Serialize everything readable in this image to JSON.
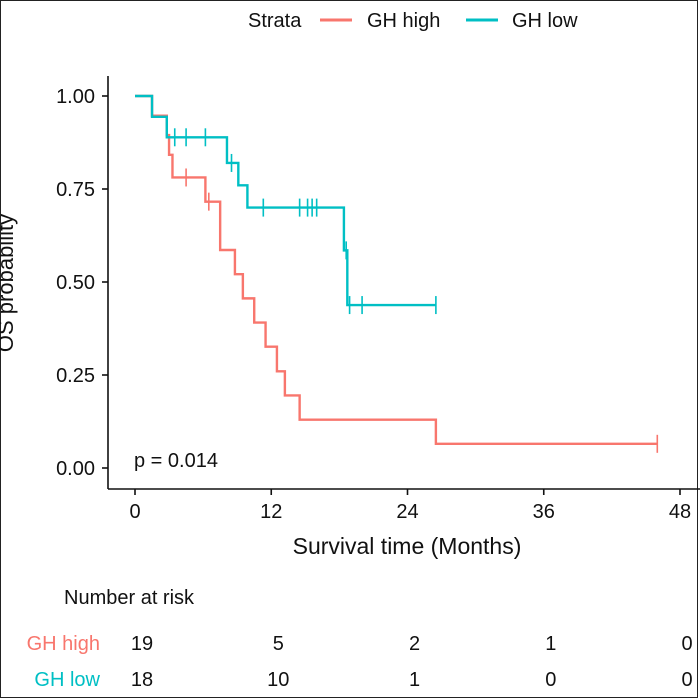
{
  "chart_data": {
    "type": "line",
    "subtype": "kaplan-meier",
    "title": "",
    "xlabel": "Survival time (Months)",
    "ylabel": "OS probability",
    "xlim": [
      -2,
      48
    ],
    "ylim": [
      0,
      1
    ],
    "x_ticks": [
      0,
      12,
      24,
      36,
      48
    ],
    "y_ticks": [
      0.0,
      0.25,
      0.5,
      0.75,
      1.0
    ],
    "x_tick_labels": [
      "0",
      "12",
      "24",
      "36",
      "48"
    ],
    "y_tick_labels": [
      "0.00",
      "0.25",
      "0.50",
      "0.75",
      "1.00"
    ],
    "grid": false,
    "legend": {
      "placement": "top",
      "title": "Strata",
      "entries": [
        "GH high",
        "GH low"
      ]
    },
    "annotation": "p = 0.014",
    "series": [
      {
        "name": "GH high",
        "color": "#F8766D",
        "steps": [
          [
            0,
            1.0
          ],
          [
            1.5,
            0.947
          ],
          [
            2.8,
            0.895
          ],
          [
            3.0,
            0.842
          ],
          [
            3.3,
            0.781
          ],
          [
            6.2,
            0.716
          ],
          [
            7.5,
            0.586
          ],
          [
            8.8,
            0.521
          ],
          [
            9.5,
            0.456
          ],
          [
            10.5,
            0.391
          ],
          [
            11.5,
            0.326
          ],
          [
            12.5,
            0.26
          ],
          [
            13.2,
            0.195
          ],
          [
            14.5,
            0.13
          ],
          [
            26.5,
            0.065
          ],
          [
            46,
            0.065
          ]
        ],
        "censor": [
          [
            4.5,
            0.781
          ],
          [
            6.5,
            0.716
          ],
          [
            46,
            0.065
          ]
        ]
      },
      {
        "name": "GH low",
        "color": "#00BFC4",
        "steps": [
          [
            0,
            1.0
          ],
          [
            1.5,
            0.944
          ],
          [
            2.8,
            0.889
          ],
          [
            8.1,
            0.82
          ],
          [
            9.1,
            0.76
          ],
          [
            9.9,
            0.7
          ],
          [
            18.4,
            0.585
          ],
          [
            18.7,
            0.438
          ],
          [
            26.5,
            0.438
          ]
        ],
        "censor": [
          [
            3.5,
            0.889
          ],
          [
            4.5,
            0.889
          ],
          [
            6.2,
            0.889
          ],
          [
            8.5,
            0.82
          ],
          [
            11.3,
            0.7
          ],
          [
            14.5,
            0.7
          ],
          [
            15.2,
            0.7
          ],
          [
            15.6,
            0.7
          ],
          [
            16.0,
            0.7
          ],
          [
            18.6,
            0.585
          ],
          [
            18.9,
            0.438
          ],
          [
            20.0,
            0.438
          ],
          [
            26.5,
            0.438
          ]
        ]
      }
    ],
    "risk_table": {
      "title": "Number at risk",
      "times": [
        0,
        12,
        24,
        36,
        48
      ],
      "rows": [
        {
          "name": "GH high",
          "color": "#F8766D",
          "values": [
            "19",
            "5",
            "2",
            "1",
            "0"
          ]
        },
        {
          "name": "GH low",
          "color": "#00BFC4",
          "values": [
            "18",
            "10",
            "1",
            "0",
            "0"
          ]
        }
      ]
    }
  }
}
